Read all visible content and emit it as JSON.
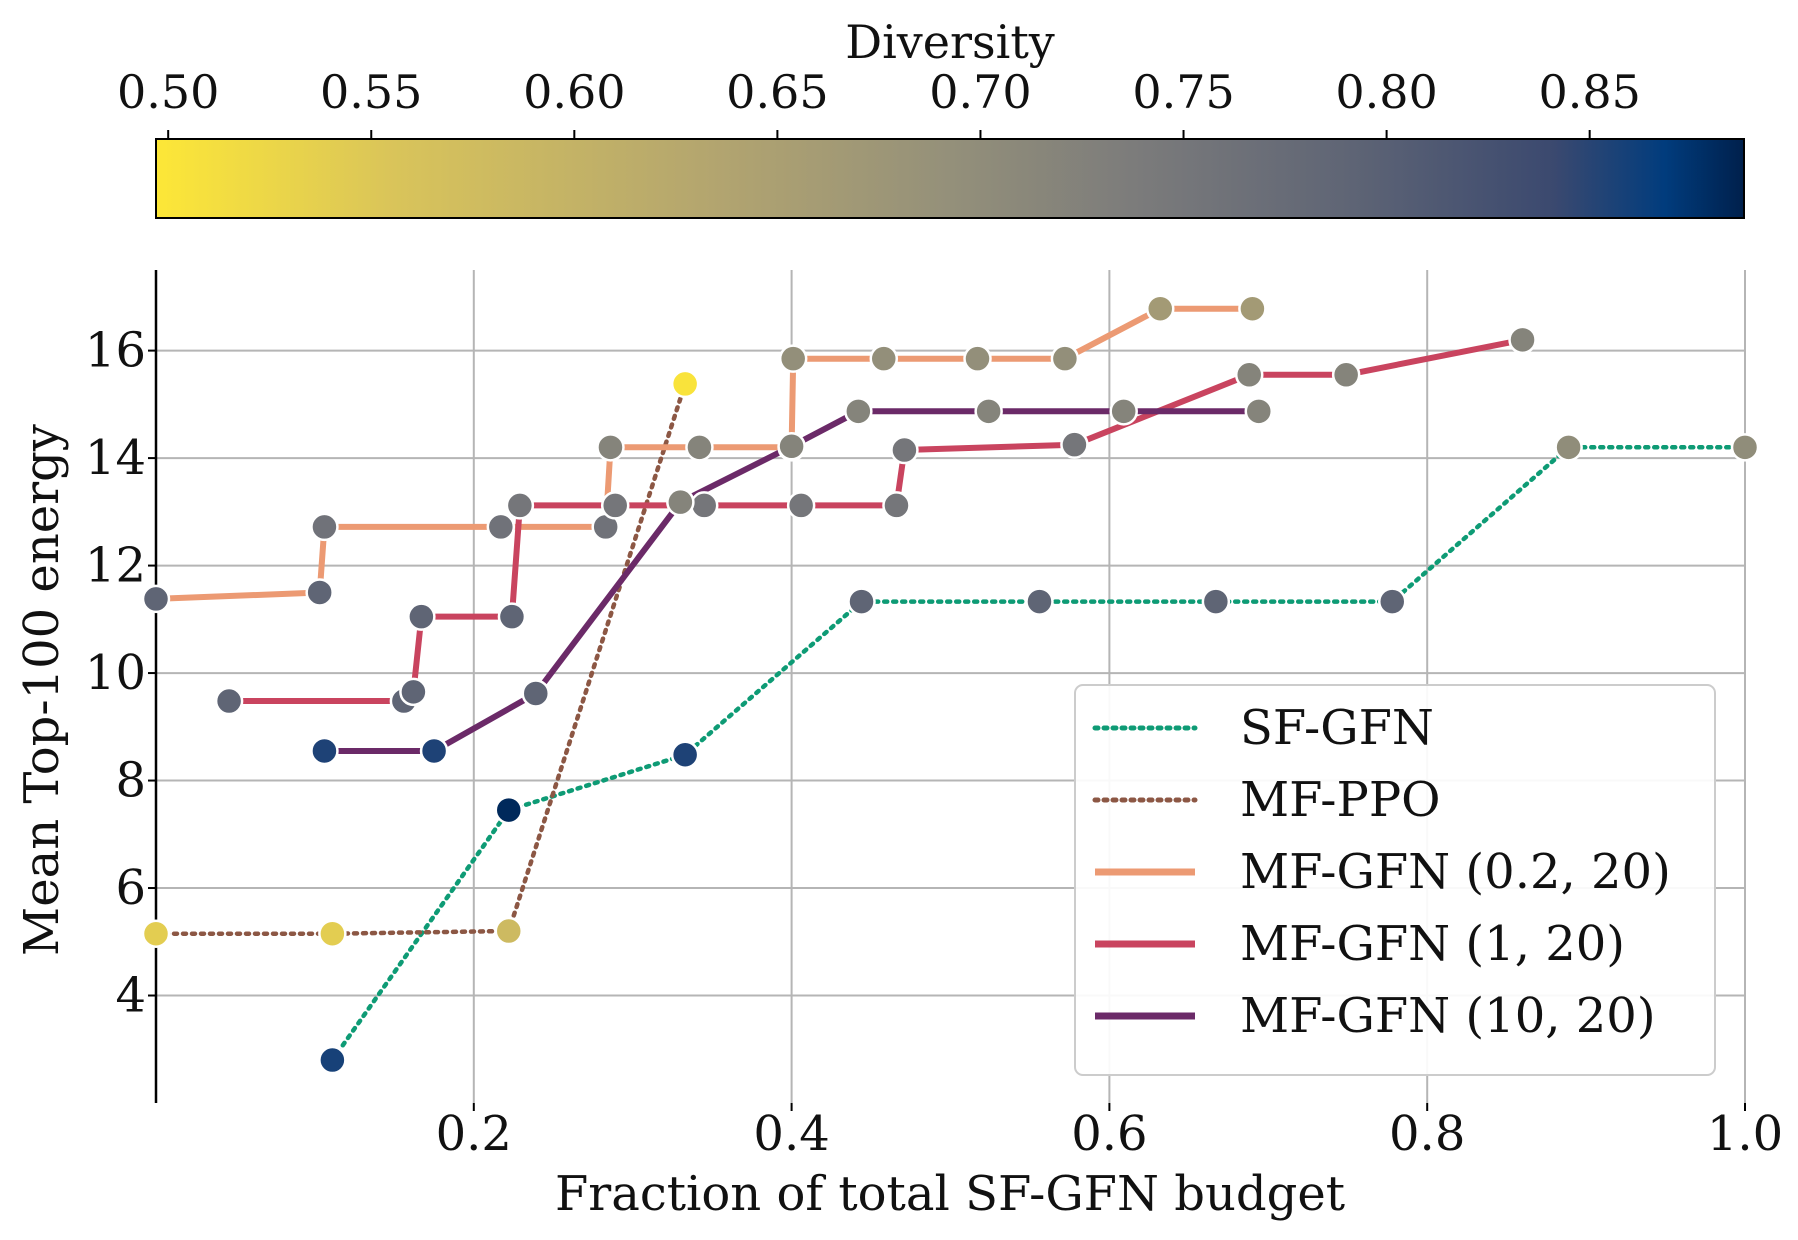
{
  "chart_data": {
    "type": "line",
    "xlabel": "Fraction of total SF-GFN budget",
    "ylabel": "Mean Top-100 energy",
    "xlim": [
      0.0,
      1.0
    ],
    "ylim": [
      2.0,
      17.5
    ],
    "x_ticks": [
      0.2,
      0.4,
      0.6,
      0.8,
      1.0
    ],
    "x_tick_labels": [
      "0.2",
      "0.4",
      "0.6",
      "0.8",
      "1.0"
    ],
    "y_ticks": [
      4,
      6,
      8,
      10,
      12,
      14,
      16
    ],
    "y_tick_labels": [
      "4",
      "6",
      "8",
      "10",
      "12",
      "14",
      "16"
    ],
    "grid": true,
    "legend_position": "lower-right",
    "colorbar": {
      "label": "Diversity",
      "range": [
        0.497,
        0.888
      ],
      "ticks": [
        0.5,
        0.55,
        0.6,
        0.65,
        0.7,
        0.75,
        0.8,
        0.85
      ],
      "tick_labels": [
        "0.50",
        "0.55",
        "0.60",
        "0.65",
        "0.70",
        "0.75",
        "0.80",
        "0.85"
      ],
      "colormap": "cividis_r"
    },
    "series": [
      {
        "name": "SF-GFN",
        "style": "dotted",
        "color": "#0e9b75",
        "points": [
          {
            "x": 0.111,
            "y": 2.8,
            "diversity": 0.858
          },
          {
            "x": 0.222,
            "y": 7.45,
            "diversity": 0.882
          },
          {
            "x": 0.333,
            "y": 8.48,
            "diversity": 0.855
          },
          {
            "x": 0.444,
            "y": 11.33,
            "diversity": 0.79
          },
          {
            "x": 0.556,
            "y": 11.33,
            "diversity": 0.79
          },
          {
            "x": 0.667,
            "y": 11.33,
            "diversity": 0.79
          },
          {
            "x": 0.778,
            "y": 11.33,
            "diversity": 0.79
          },
          {
            "x": 0.889,
            "y": 14.2,
            "diversity": 0.7
          },
          {
            "x": 1.0,
            "y": 14.2,
            "diversity": 0.7
          }
        ]
      },
      {
        "name": "MF-PPO",
        "style": "dotted",
        "color": "#8c5744",
        "points": [
          {
            "x": 0.0,
            "y": 5.15,
            "diversity": 0.54
          },
          {
            "x": 0.111,
            "y": 5.15,
            "diversity": 0.54
          },
          {
            "x": 0.222,
            "y": 5.2,
            "diversity": 0.58
          },
          {
            "x": 0.333,
            "y": 15.38,
            "diversity": 0.503
          }
        ]
      },
      {
        "name": "MF-GFN (0.2, 20)",
        "style": "solid",
        "color": "#ec9a73",
        "points": [
          {
            "x": 0.0,
            "y": 11.38,
            "diversity": 0.79
          },
          {
            "x": 0.103,
            "y": 11.5,
            "diversity": 0.79
          },
          {
            "x": 0.106,
            "y": 12.72,
            "diversity": 0.76
          },
          {
            "x": 0.217,
            "y": 12.72,
            "diversity": 0.76
          },
          {
            "x": 0.283,
            "y": 12.72,
            "diversity": 0.76
          },
          {
            "x": 0.286,
            "y": 14.2,
            "diversity": 0.72
          },
          {
            "x": 0.342,
            "y": 14.2,
            "diversity": 0.72
          },
          {
            "x": 0.4,
            "y": 14.2,
            "diversity": 0.72
          },
          {
            "x": 0.401,
            "y": 15.85,
            "diversity": 0.695
          },
          {
            "x": 0.458,
            "y": 15.85,
            "diversity": 0.695
          },
          {
            "x": 0.517,
            "y": 15.85,
            "diversity": 0.695
          },
          {
            "x": 0.572,
            "y": 15.85,
            "diversity": 0.695
          },
          {
            "x": 0.632,
            "y": 16.78,
            "diversity": 0.665
          },
          {
            "x": 0.69,
            "y": 16.78,
            "diversity": 0.665
          }
        ]
      },
      {
        "name": "MF-GFN (1, 20)",
        "style": "solid",
        "color": "#c9445f",
        "points": [
          {
            "x": 0.046,
            "y": 9.48,
            "diversity": 0.79
          },
          {
            "x": 0.156,
            "y": 9.48,
            "diversity": 0.79
          },
          {
            "x": 0.162,
            "y": 9.65,
            "diversity": 0.79
          },
          {
            "x": 0.167,
            "y": 11.05,
            "diversity": 0.79
          },
          {
            "x": 0.224,
            "y": 11.05,
            "diversity": 0.79
          },
          {
            "x": 0.229,
            "y": 13.12,
            "diversity": 0.75
          },
          {
            "x": 0.289,
            "y": 13.12,
            "diversity": 0.75
          },
          {
            "x": 0.345,
            "y": 13.12,
            "diversity": 0.75
          },
          {
            "x": 0.406,
            "y": 13.12,
            "diversity": 0.75
          },
          {
            "x": 0.466,
            "y": 13.12,
            "diversity": 0.75
          },
          {
            "x": 0.471,
            "y": 14.15,
            "diversity": 0.75
          },
          {
            "x": 0.578,
            "y": 14.25,
            "diversity": 0.75
          },
          {
            "x": 0.688,
            "y": 15.55,
            "diversity": 0.72
          },
          {
            "x": 0.749,
            "y": 15.55,
            "diversity": 0.72
          },
          {
            "x": 0.86,
            "y": 16.2,
            "diversity": 0.72
          }
        ]
      },
      {
        "name": "MF-GFN (10, 20)",
        "style": "solid",
        "color": "#6b2a68",
        "points": [
          {
            "x": 0.106,
            "y": 8.55,
            "diversity": 0.855
          },
          {
            "x": 0.175,
            "y": 8.55,
            "diversity": 0.855
          },
          {
            "x": 0.239,
            "y": 9.62,
            "diversity": 0.79
          },
          {
            "x": 0.33,
            "y": 13.18,
            "diversity": 0.72
          },
          {
            "x": 0.4,
            "y": 14.22,
            "diversity": 0.72
          },
          {
            "x": 0.442,
            "y": 14.87,
            "diversity": 0.72
          },
          {
            "x": 0.524,
            "y": 14.87,
            "diversity": 0.72
          },
          {
            "x": 0.609,
            "y": 14.87,
            "diversity": 0.72
          },
          {
            "x": 0.694,
            "y": 14.87,
            "diversity": 0.72
          }
        ]
      }
    ]
  }
}
